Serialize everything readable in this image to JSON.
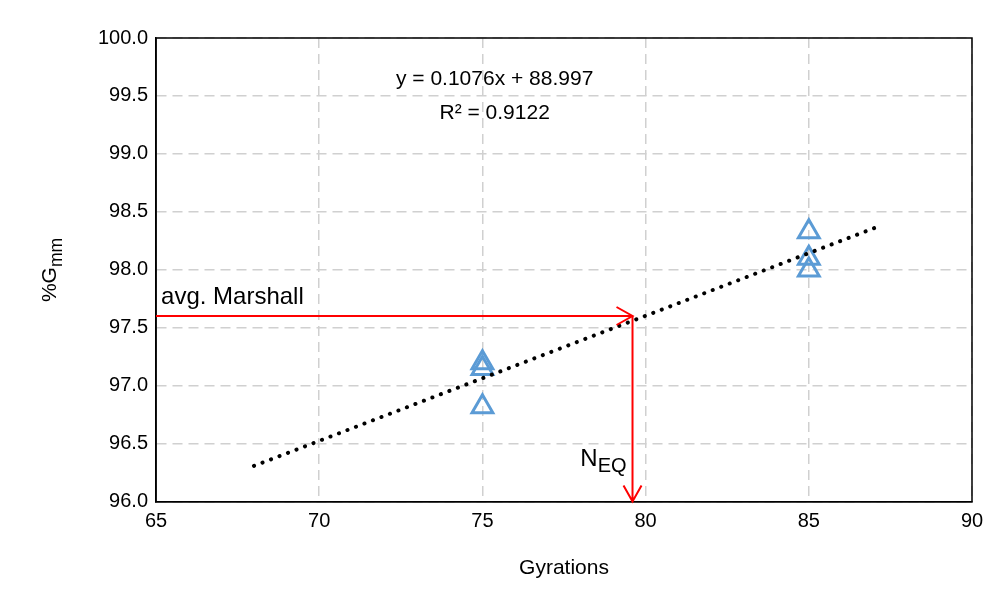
{
  "chart_data": {
    "type": "scatter",
    "xlabel": "Gyrations",
    "ylabel": "%G$_{mm}$",
    "xlim": [
      65,
      90
    ],
    "xticks": [
      65,
      70,
      75,
      80,
      85,
      90
    ],
    "ylim": [
      96,
      100
    ],
    "yticks": [
      {
        "value": 96,
        "label": "96.0"
      },
      {
        "value": 96.5,
        "label": "96.5"
      },
      {
        "value": 97,
        "label": "97.0"
      },
      {
        "value": 97.5,
        "label": "97.5"
      },
      {
        "value": 98,
        "label": "98.0"
      },
      {
        "value": 98.5,
        "label": "98.5"
      },
      {
        "value": 99,
        "label": "99.0"
      },
      {
        "value": 99.5,
        "label": "99.5"
      },
      {
        "value": 100,
        "label": "100.0"
      }
    ],
    "grid": true,
    "series": [
      {
        "type": "scatter",
        "x": [
          75,
          75,
          75,
          85,
          85,
          85
        ],
        "values": [
          97.2,
          97.15,
          96.82,
          98.33,
          98.1,
          98.0
        ],
        "color": "#5b9bd5",
        "marker": "triangle"
      },
      {
        "type": "line",
        "x": [
          68,
          87
        ],
        "values": [
          96.31,
          98.36
        ],
        "color": "#000000",
        "line_style": "dotted",
        "marker": "none"
      }
    ],
    "ref_lines": [
      {
        "axis": "y",
        "value": 97.6,
        "label": "avg. Marshall",
        "color": "#ff0000"
      },
      {
        "axis": "x",
        "value": 79.6,
        "label": "N$_{EQ}$",
        "color": "#ff0000"
      }
    ],
    "annotations": [
      "y = 0.1076x + 88.997",
      "R² = 0.9122"
    ]
  }
}
